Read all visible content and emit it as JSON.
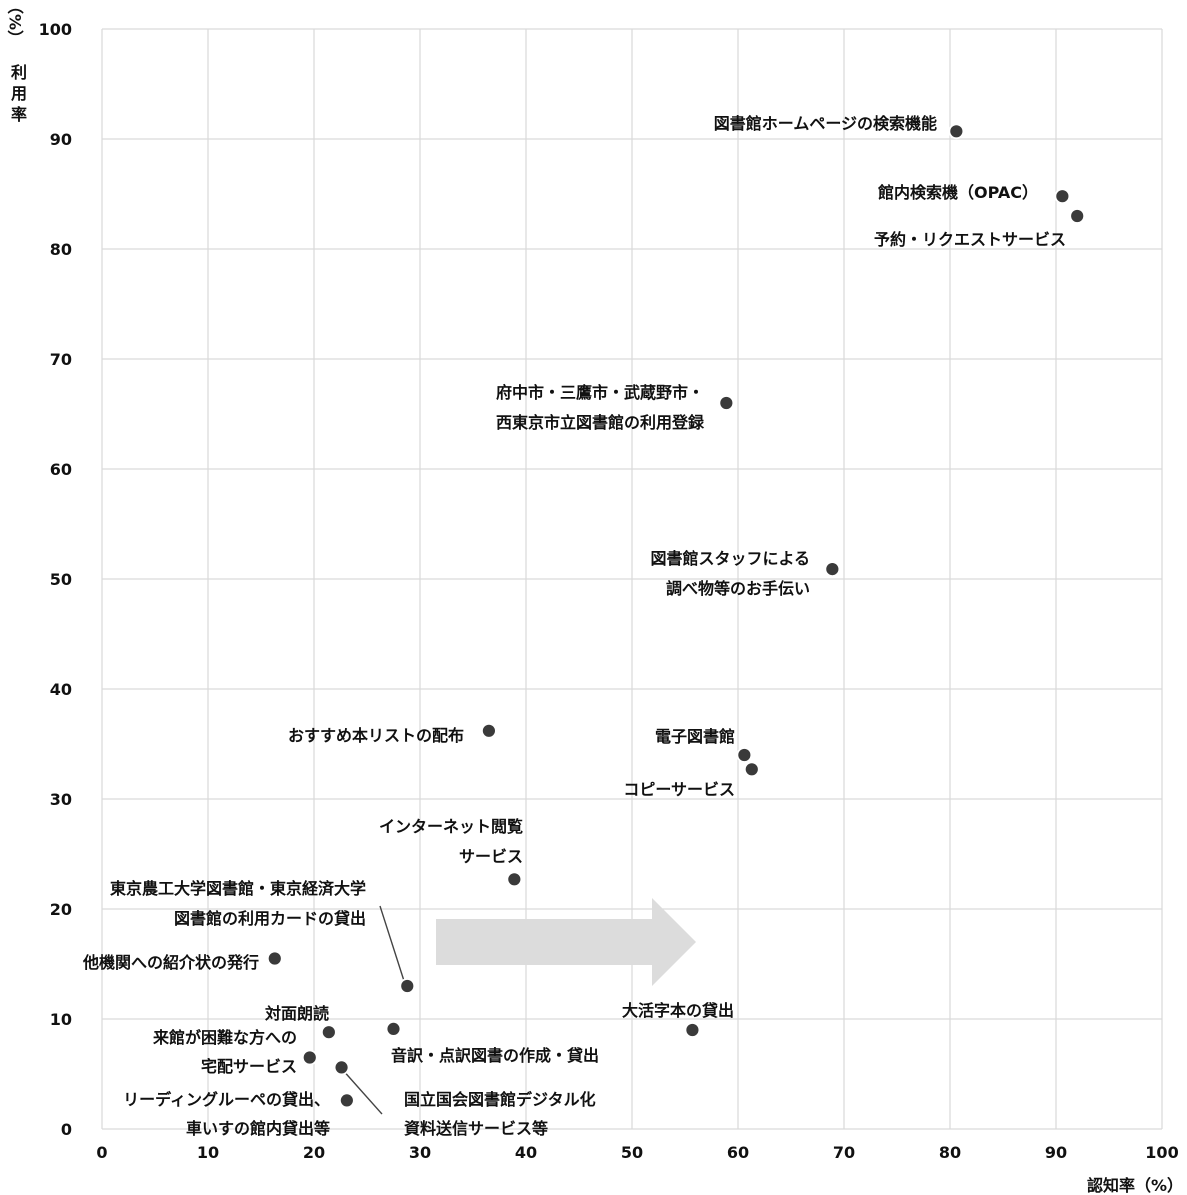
{
  "chart_data": {
    "type": "scatter",
    "xlabel": "認知率（%）",
    "ylabel": "利用率（%）",
    "ylabel_parts": {
      "unit": "（%）",
      "name": [
        "利",
        "用",
        "率"
      ]
    },
    "xlim": [
      0,
      100
    ],
    "ylim": [
      0,
      100
    ],
    "x_ticks": [
      "0",
      "10",
      "20",
      "30",
      "40",
      "50",
      "60",
      "70",
      "80",
      "90",
      "100"
    ],
    "y_ticks": [
      "0",
      "10",
      "20",
      "30",
      "40",
      "50",
      "60",
      "70",
      "80",
      "90",
      "100"
    ],
    "grid": true,
    "annotation": "right-arrow",
    "colors": {
      "point": "#3a3a3a",
      "grid": "#d9d9d9",
      "arrow": "#dcdcdc"
    },
    "points": [
      {
        "name": "図書館ホームページの検索機能",
        "lines": [
          "図書館ホームページの検索機能"
        ],
        "x": 80.6,
        "y": 90.7
      },
      {
        "name": "館内検索機（OPAC）",
        "lines": [
          "館内検索機（OPAC）"
        ],
        "x": 90.6,
        "y": 84.8
      },
      {
        "name": "予約・リクエストサービス",
        "lines": [
          "予約・リクエストサービス"
        ],
        "x": 92.0,
        "y": 83.0
      },
      {
        "name": "府中市・三鷹市・武蔵野市・西東京市立図書館の利用登録",
        "lines": [
          "府中市・三鷹市・武蔵野市・",
          "西東京市立図書館の利用登録"
        ],
        "x": 58.9,
        "y": 66.0
      },
      {
        "name": "図書館スタッフによる調べ物等のお手伝い",
        "lines": [
          "図書館スタッフによる",
          "調べ物等のお手伝い"
        ],
        "x": 68.9,
        "y": 50.9
      },
      {
        "name": "おすすめ本リストの配布",
        "lines": [
          "おすすめ本リストの配布"
        ],
        "x": 36.5,
        "y": 36.2
      },
      {
        "name": "電子図書館",
        "lines": [
          "電子図書館"
        ],
        "x": 60.6,
        "y": 34.0
      },
      {
        "name": "コピーサービス",
        "lines": [
          "コピーサービス"
        ],
        "x": 61.3,
        "y": 32.7
      },
      {
        "name": "インターネット閲覧サービス",
        "lines": [
          "インターネット閲覧",
          "サービス"
        ],
        "x": 38.9,
        "y": 22.7
      },
      {
        "name": "東京農工大学図書館・東京経済大学図書館の利用カードの貸出",
        "lines": [
          "東京農工大学図書館・東京経済大学",
          "図書館の利用カードの貸出"
        ],
        "x": 28.8,
        "y": 13.0
      },
      {
        "name": "他機関への紹介状の発行",
        "lines": [
          "他機関への紹介状の発行"
        ],
        "x": 16.3,
        "y": 15.5
      },
      {
        "name": "大活字本の貸出",
        "lines": [
          "大活字本の貸出"
        ],
        "x": 55.7,
        "y": 9.0
      },
      {
        "name": "対面朗読",
        "lines": [
          "対面朗読"
        ],
        "x": 21.4,
        "y": 8.8
      },
      {
        "name": "音訳・点訳図書の作成・貸出",
        "lines": [
          "音訳・点訳図書の作成・貸出"
        ],
        "x": 27.5,
        "y": 9.1
      },
      {
        "name": "来館が困難な方への宅配サービス",
        "lines": [
          "来館が困難な方への",
          "宅配サービス"
        ],
        "x": 19.6,
        "y": 6.5
      },
      {
        "name": "国立国会図書館デジタル化資料送信サービス等",
        "lines": [
          "国立国会図書館デジタル化",
          "資料送信サービス等"
        ],
        "x": 22.6,
        "y": 5.6
      },
      {
        "name": "リーディングルーペの貸出、車いすの館内貸出等",
        "lines": [
          "リーディングルーペの貸出、",
          "車いすの館内貸出等"
        ],
        "x": 23.1,
        "y": 2.6
      }
    ]
  }
}
